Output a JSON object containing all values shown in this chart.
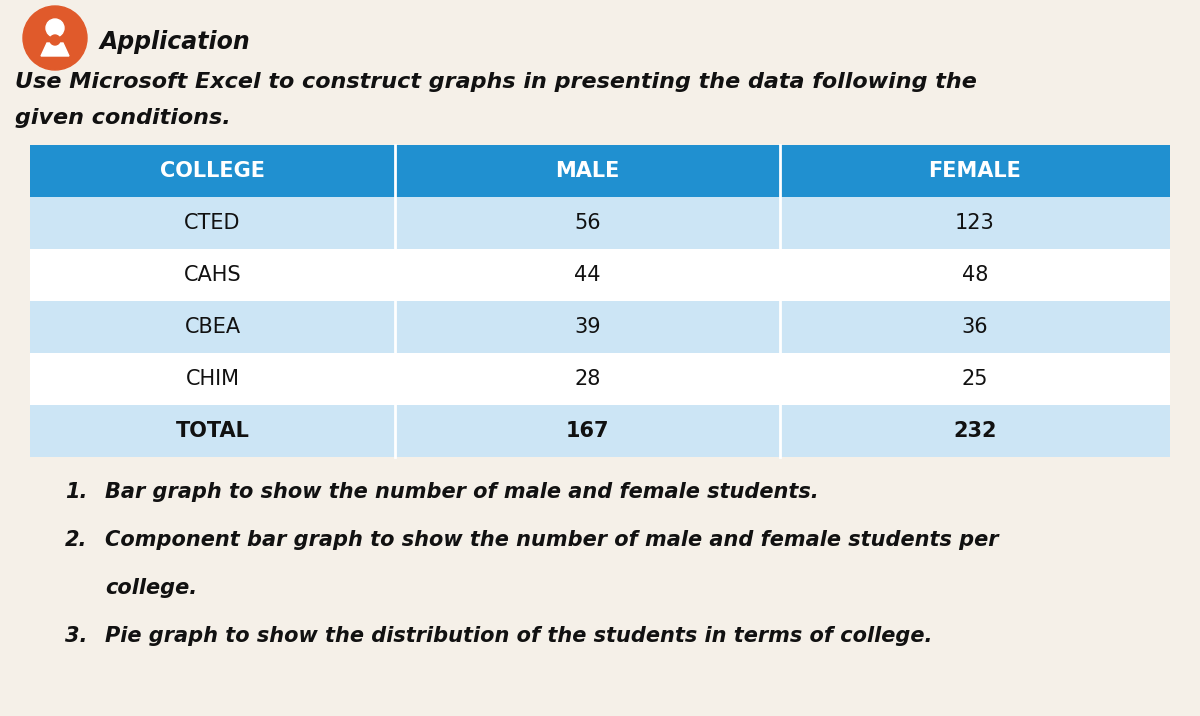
{
  "title_icon_color": "#e05a2b",
  "title_text": "Application",
  "subtitle_line1": "Use Microsoft Excel to construct graphs in presenting the data following the",
  "subtitle_line2": "given conditions.",
  "header_bg_color": "#2090d0",
  "header_text_color": "#FFFFFF",
  "row_alt_color": "#cce5f5",
  "row_white_color": "#FFFFFF",
  "columns": [
    "COLLEGE",
    "MALE",
    "FEMALE"
  ],
  "rows": [
    [
      "CTED",
      "56",
      "123"
    ],
    [
      "CAHS",
      "44",
      "48"
    ],
    [
      "CBEA",
      "39",
      "36"
    ],
    [
      "CHIM",
      "28",
      "25"
    ],
    [
      "TOTAL",
      "167",
      "232"
    ]
  ],
  "alt_rows": [
    0,
    2,
    4
  ],
  "footer_lines": [
    [
      "1.",
      "Bar graph to show the number of male and female students."
    ],
    [
      "2.",
      "Component bar graph to show the number of male and female students per"
    ],
    [
      "",
      "college."
    ],
    [
      "3.",
      "Pie graph to show the distribution of the students in terms of college."
    ]
  ],
  "background_color": "#f5f0e8",
  "font_size_title": 17,
  "font_size_subtitle": 16,
  "font_size_header": 15,
  "font_size_cell": 15,
  "font_size_footer": 15
}
